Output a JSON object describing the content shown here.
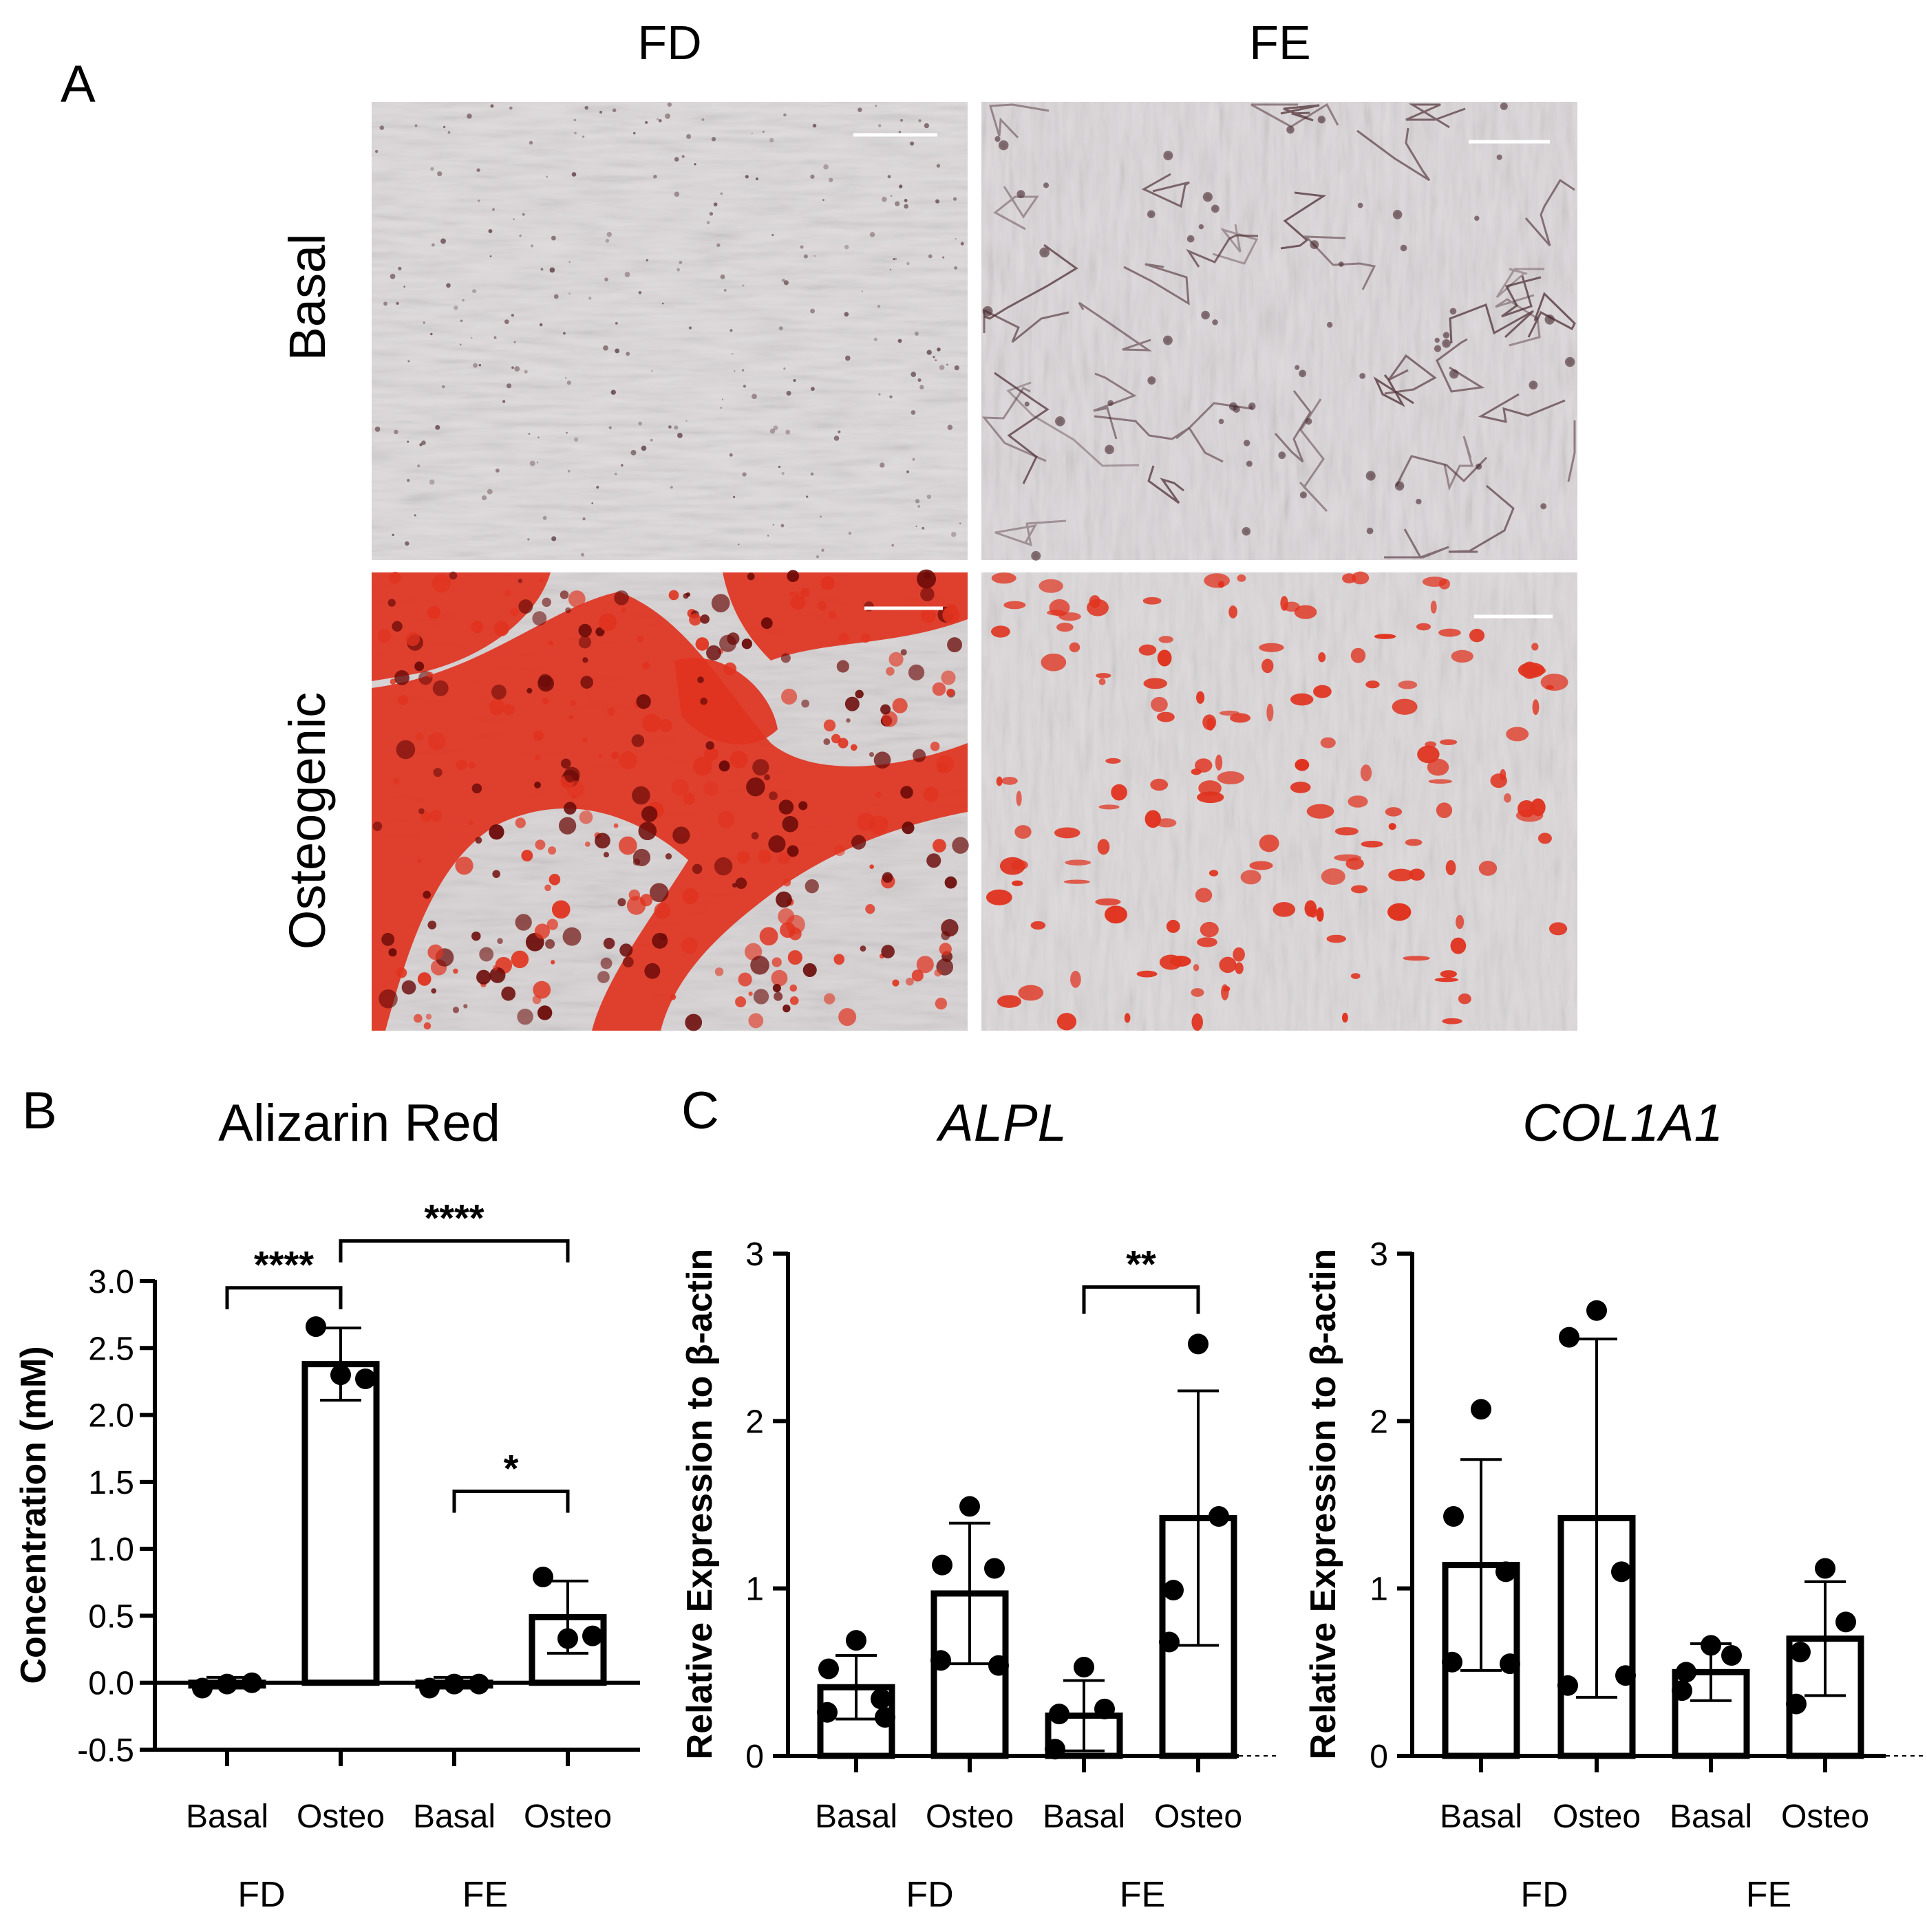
{
  "panel_a": {
    "label": "A",
    "columns": [
      "FD",
      "FE"
    ],
    "rows": [
      "Basal",
      "Osteogenic"
    ],
    "micrographs": [
      {
        "column": "FD",
        "row": "Basal",
        "stain": "alizarin-red-faint"
      },
      {
        "column": "FE",
        "row": "Basal",
        "stain": "alizarin-red-faint-fibrous"
      },
      {
        "column": "FD",
        "row": "Osteogenic",
        "stain": "alizarin-red-heavy"
      },
      {
        "column": "FE",
        "row": "Osteogenic",
        "stain": "alizarin-red-moderate"
      }
    ],
    "colors": {
      "basal_bg": "#dcd7d9",
      "stain_red": "#e0331f",
      "stain_dark": "#6b0a08"
    }
  },
  "panel_labels": {
    "b": "B",
    "c": "C"
  },
  "chart_data": [
    {
      "type": "bar",
      "id": "alizarin",
      "title": "Alizarin Red",
      "title_italic": false,
      "ylabel": "Concentration (mM)",
      "ylim": [
        -0.5,
        3.0
      ],
      "yticks": [
        "3.0",
        "2.5",
        "2.0",
        "1.5",
        "1.0",
        "0.5",
        "0.0",
        "-0.5"
      ],
      "categories": [
        "Basal",
        "Osteo",
        "Basal",
        "Osteo"
      ],
      "groups": [
        "FD",
        "FE"
      ],
      "values": [
        0.0,
        2.38,
        0.0,
        0.49
      ],
      "sd": [
        0.04,
        0.27,
        0.04,
        0.27
      ],
      "points": [
        [
          -0.04,
          -0.01,
          0.0
        ],
        [
          2.66,
          2.3,
          2.27
        ],
        [
          -0.04,
          -0.01,
          -0.01
        ],
        [
          0.79,
          0.33,
          0.35
        ]
      ],
      "significance": [
        {
          "from": 0,
          "to": 1,
          "label": "****",
          "y": 2.95
        },
        {
          "from": 1,
          "to": 3,
          "label": "****",
          "y": 3.3
        },
        {
          "from": 2,
          "to": 3,
          "label": "*",
          "y": 1.43
        }
      ],
      "zero_line": true,
      "grid": false
    },
    {
      "type": "bar",
      "id": "alpl",
      "title": "ALPL",
      "title_italic": true,
      "ylabel": "Relative Expression to β-actin",
      "ylim": [
        0,
        3
      ],
      "yticks": [
        "3",
        "2",
        "1",
        "0"
      ],
      "categories": [
        "Basal",
        "Osteo",
        "Basal",
        "Osteo"
      ],
      "groups": [
        "FD",
        "FE"
      ],
      "values": [
        0.41,
        0.97,
        0.24,
        1.42
      ],
      "sd": [
        0.19,
        0.42,
        0.21,
        0.76
      ],
      "points": [
        [
          0.69,
          0.52,
          0.34,
          0.26,
          0.23
        ],
        [
          1.49,
          1.14,
          1.12,
          0.57,
          0.54
        ],
        [
          0.53,
          0.28,
          0.25,
          0.04
        ],
        [
          2.46,
          1.43,
          0.99,
          0.68
        ]
      ],
      "significance": [
        {
          "from": 2,
          "to": 3,
          "label": "**",
          "y": 2.8
        }
      ],
      "zero_line": false,
      "grid": false
    },
    {
      "type": "bar",
      "id": "col1a1",
      "title": "COL1A1",
      "title_italic": true,
      "ylabel": "Relative Expression to β-actin",
      "ylim": [
        0,
        3
      ],
      "yticks": [
        "3",
        "2",
        "1",
        "0"
      ],
      "categories": [
        "Basal",
        "Osteo",
        "Basal",
        "Osteo"
      ],
      "groups": [
        "FD",
        "FE"
      ],
      "values": [
        1.14,
        1.42,
        0.5,
        0.7
      ],
      "sd": [
        0.63,
        1.07,
        0.17,
        0.34
      ],
      "points": [
        [
          2.07,
          1.43,
          1.1,
          0.56,
          0.55
        ],
        [
          2.66,
          2.5,
          1.1,
          0.42,
          0.48
        ],
        [
          0.66,
          0.6,
          0.5,
          0.39
        ],
        [
          1.12,
          0.8,
          0.62,
          0.31
        ]
      ],
      "significance": [],
      "zero_line": false,
      "grid": false
    }
  ]
}
